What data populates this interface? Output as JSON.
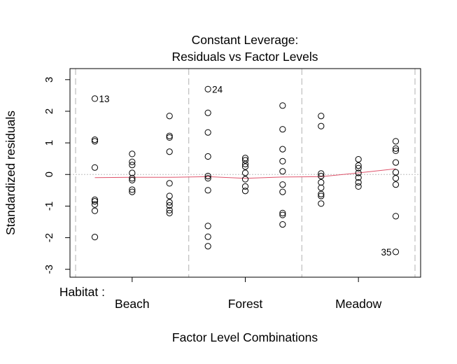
{
  "chart_data": {
    "type": "scatter",
    "title": [
      "Constant Leverage:",
      "Residuals vs Factor Levels"
    ],
    "xlabel": "Factor Level Combinations",
    "ylabel": "Standardized residuals",
    "factor_label": "Habitat :",
    "categories": [
      "Beach",
      "Forest",
      "Meadow"
    ],
    "ylim": [
      -3.25,
      3.35
    ],
    "yticks": [
      -3,
      -2,
      -1,
      0,
      1,
      2,
      3
    ],
    "x_range": [
      -0.5,
      2.5
    ],
    "zero_line": 0,
    "level_separators": [
      -0.5,
      0.5,
      1.5,
      2.5
    ],
    "points": [
      {
        "x": -0.33,
        "y": 2.4,
        "label": "13"
      },
      {
        "x": -0.33,
        "y": 1.1
      },
      {
        "x": -0.33,
        "y": 1.05
      },
      {
        "x": -0.33,
        "y": 0.22
      },
      {
        "x": -0.33,
        "y": -0.8
      },
      {
        "x": -0.33,
        "y": -0.85
      },
      {
        "x": -0.33,
        "y": -0.95
      },
      {
        "x": -0.33,
        "y": -1.15
      },
      {
        "x": -0.33,
        "y": -1.98
      },
      {
        "x": 0.0,
        "y": 0.65
      },
      {
        "x": 0.0,
        "y": 0.4
      },
      {
        "x": 0.0,
        "y": 0.3
      },
      {
        "x": 0.0,
        "y": 0.05
      },
      {
        "x": 0.0,
        "y": -0.12
      },
      {
        "x": 0.0,
        "y": -0.18
      },
      {
        "x": 0.0,
        "y": -0.48
      },
      {
        "x": 0.0,
        "y": -0.55
      },
      {
        "x": 0.33,
        "y": 1.85
      },
      {
        "x": 0.33,
        "y": 1.22
      },
      {
        "x": 0.33,
        "y": 1.17
      },
      {
        "x": 0.33,
        "y": 0.72
      },
      {
        "x": 0.33,
        "y": -0.28
      },
      {
        "x": 0.33,
        "y": -0.68
      },
      {
        "x": 0.33,
        "y": -0.88
      },
      {
        "x": 0.33,
        "y": -0.98
      },
      {
        "x": 0.33,
        "y": -1.13
      },
      {
        "x": 0.33,
        "y": -1.22
      },
      {
        "x": 0.67,
        "y": 2.7,
        "label": "24"
      },
      {
        "x": 0.67,
        "y": 1.95
      },
      {
        "x": 0.67,
        "y": 1.33
      },
      {
        "x": 0.67,
        "y": 0.57
      },
      {
        "x": 0.67,
        "y": -0.05
      },
      {
        "x": 0.67,
        "y": -0.12
      },
      {
        "x": 0.67,
        "y": -0.5
      },
      {
        "x": 0.67,
        "y": -1.63
      },
      {
        "x": 0.67,
        "y": -1.97
      },
      {
        "x": 0.67,
        "y": -2.27
      },
      {
        "x": 1.0,
        "y": 0.52
      },
      {
        "x": 1.0,
        "y": 0.45
      },
      {
        "x": 1.0,
        "y": 0.33
      },
      {
        "x": 1.0,
        "y": 0.25
      },
      {
        "x": 1.0,
        "y": 0.05
      },
      {
        "x": 1.0,
        "y": -0.15
      },
      {
        "x": 1.0,
        "y": -0.38
      },
      {
        "x": 1.0,
        "y": -0.52
      },
      {
        "x": 1.33,
        "y": 2.18
      },
      {
        "x": 1.33,
        "y": 1.43
      },
      {
        "x": 1.33,
        "y": 0.8
      },
      {
        "x": 1.33,
        "y": 0.42
      },
      {
        "x": 1.33,
        "y": 0.1
      },
      {
        "x": 1.33,
        "y": -0.32
      },
      {
        "x": 1.33,
        "y": -0.55
      },
      {
        "x": 1.33,
        "y": -1.22
      },
      {
        "x": 1.33,
        "y": -1.28
      },
      {
        "x": 1.33,
        "y": -1.58
      },
      {
        "x": 1.67,
        "y": 1.85
      },
      {
        "x": 1.67,
        "y": 1.53
      },
      {
        "x": 1.67,
        "y": 0.03
      },
      {
        "x": 1.67,
        "y": -0.05
      },
      {
        "x": 1.67,
        "y": -0.25
      },
      {
        "x": 1.67,
        "y": -0.42
      },
      {
        "x": 1.67,
        "y": -0.62
      },
      {
        "x": 1.67,
        "y": -0.68
      },
      {
        "x": 1.67,
        "y": -0.92
      },
      {
        "x": 2.0,
        "y": 0.48
      },
      {
        "x": 2.0,
        "y": 0.28
      },
      {
        "x": 2.0,
        "y": 0.2
      },
      {
        "x": 2.0,
        "y": 0.05
      },
      {
        "x": 2.0,
        "y": -0.1
      },
      {
        "x": 2.0,
        "y": -0.25
      },
      {
        "x": 2.0,
        "y": -0.38
      },
      {
        "x": 2.33,
        "y": 1.05
      },
      {
        "x": 2.33,
        "y": 0.82
      },
      {
        "x": 2.33,
        "y": 0.75
      },
      {
        "x": 2.33,
        "y": 0.38
      },
      {
        "x": 2.33,
        "y": 0.07
      },
      {
        "x": 2.33,
        "y": -0.12
      },
      {
        "x": 2.33,
        "y": -0.32
      },
      {
        "x": 2.33,
        "y": -1.32
      },
      {
        "x": 2.33,
        "y": -2.45,
        "label": "35",
        "label_side": "left"
      }
    ],
    "smoother": {
      "x": [
        -0.33,
        0.0,
        0.33,
        0.67,
        1.0,
        1.33,
        1.67,
        2.0,
        2.33
      ],
      "y": [
        -0.1,
        -0.09,
        -0.09,
        -0.07,
        -0.12,
        -0.08,
        -0.07,
        0.05,
        0.18
      ],
      "color": "#DF536B"
    },
    "colors": {
      "points": "#000000",
      "zero_line": "#BEBEBE",
      "separators": "#BEBEBE",
      "smoother": "#DF536B"
    },
    "grid": false
  }
}
